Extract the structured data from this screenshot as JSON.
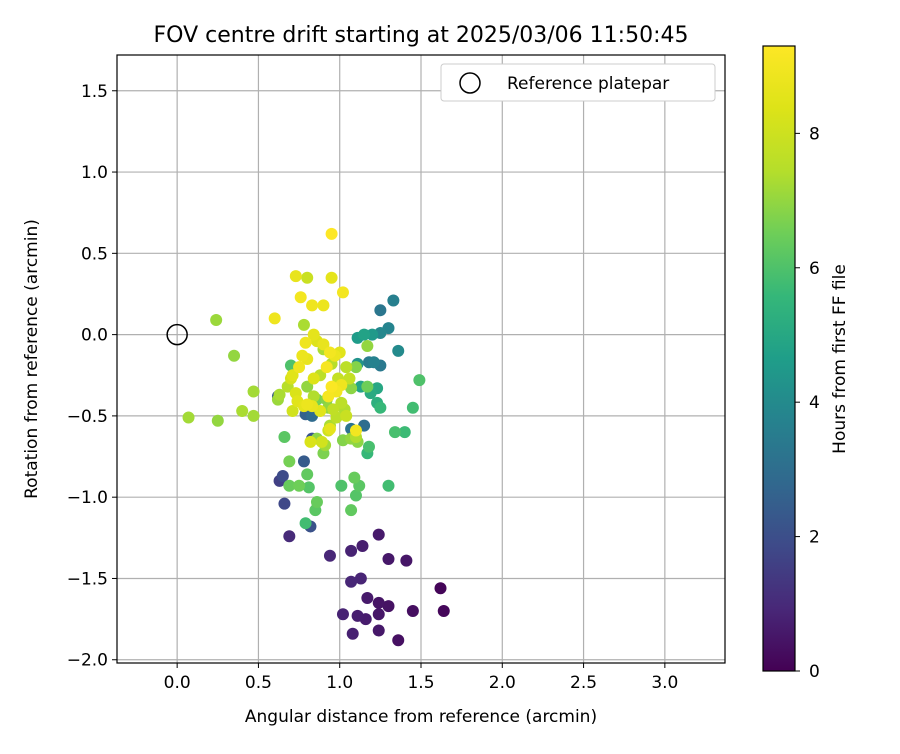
{
  "chart_data": {
    "type": "scatter",
    "title": "FOV centre drift starting at 2025/03/06 11:50:45",
    "xlabel": "Angular distance from reference (arcmin)",
    "ylabel": "Rotation from reference (arcmin)",
    "xlim": [
      -0.37,
      3.37
    ],
    "ylim": [
      -2.02,
      1.72
    ],
    "xticks": [
      0.0,
      0.5,
      1.0,
      1.5,
      2.0,
      2.5,
      3.0
    ],
    "xtick_labels": [
      "0.0",
      "0.5",
      "1.0",
      "1.5",
      "2.0",
      "2.5",
      "3.0"
    ],
    "yticks": [
      -2.0,
      -1.5,
      -1.0,
      -0.5,
      0.0,
      0.5,
      1.0,
      1.5
    ],
    "ytick_labels": [
      "−2.0",
      "−1.5",
      "−1.0",
      "−0.5",
      "0.0",
      "0.5",
      "1.0",
      "1.5"
    ],
    "grid": true,
    "legend": {
      "placement": "top-right",
      "entries": [
        "Reference platepar"
      ]
    },
    "reference_point": {
      "x": 0.0,
      "y": 0.0,
      "marker": "open-circle"
    },
    "colorbar": {
      "label": "Hours from first FF file",
      "colormap": "viridis",
      "range": [
        0,
        9.3
      ],
      "ticks": [
        0,
        2,
        4,
        6,
        8
      ],
      "tick_labels": [
        "0",
        "2",
        "4",
        "6",
        "8"
      ]
    },
    "points": [
      {
        "x": 1.62,
        "y": -1.56,
        "t": 0.1
      },
      {
        "x": 1.64,
        "y": -1.7,
        "t": 0.15
      },
      {
        "x": 1.45,
        "y": -1.7,
        "t": 0.3
      },
      {
        "x": 1.36,
        "y": -1.88,
        "t": 0.35
      },
      {
        "x": 1.3,
        "y": -1.67,
        "t": 0.4
      },
      {
        "x": 1.24,
        "y": -1.65,
        "t": 0.45
      },
      {
        "x": 1.24,
        "y": -1.72,
        "t": 0.5
      },
      {
        "x": 1.24,
        "y": -1.82,
        "t": 0.55
      },
      {
        "x": 1.17,
        "y": -1.62,
        "t": 0.6
      },
      {
        "x": 1.16,
        "y": -1.75,
        "t": 0.65
      },
      {
        "x": 1.11,
        "y": -1.73,
        "t": 0.7
      },
      {
        "x": 1.08,
        "y": -1.84,
        "t": 0.75
      },
      {
        "x": 1.02,
        "y": -1.72,
        "t": 0.8
      },
      {
        "x": 1.13,
        "y": -1.5,
        "t": 0.85
      },
      {
        "x": 1.07,
        "y": -1.52,
        "t": 0.9
      },
      {
        "x": 1.41,
        "y": -1.39,
        "t": 0.5
      },
      {
        "x": 1.3,
        "y": -1.38,
        "t": 0.55
      },
      {
        "x": 1.24,
        "y": -1.23,
        "t": 0.6
      },
      {
        "x": 1.14,
        "y": -1.3,
        "t": 0.7
      },
      {
        "x": 1.07,
        "y": -1.33,
        "t": 0.8
      },
      {
        "x": 0.94,
        "y": -1.36,
        "t": 0.9
      },
      {
        "x": 0.69,
        "y": -1.24,
        "t": 1.0
      },
      {
        "x": 0.82,
        "y": -1.18,
        "t": 2.1
      },
      {
        "x": 0.66,
        "y": -1.04,
        "t": 1.8
      },
      {
        "x": 0.63,
        "y": -0.9,
        "t": 1.6
      },
      {
        "x": 0.65,
        "y": -0.87,
        "t": 1.9
      },
      {
        "x": 0.78,
        "y": -0.78,
        "t": 2.4
      },
      {
        "x": 0.83,
        "y": -0.64,
        "t": 2.2
      },
      {
        "x": 0.79,
        "y": -0.49,
        "t": 2.6
      },
      {
        "x": 0.83,
        "y": -0.5,
        "t": 2.9
      },
      {
        "x": 0.62,
        "y": -0.38,
        "t": 2.3
      },
      {
        "x": 1.25,
        "y": 0.15,
        "t": 3.3
      },
      {
        "x": 1.33,
        "y": 0.21,
        "t": 3.6
      },
      {
        "x": 1.3,
        "y": 0.04,
        "t": 3.8
      },
      {
        "x": 1.25,
        "y": 0.01,
        "t": 3.9
      },
      {
        "x": 1.21,
        "y": -0.17,
        "t": 3.7
      },
      {
        "x": 1.25,
        "y": -0.19,
        "t": 3.4
      },
      {
        "x": 1.36,
        "y": -0.1,
        "t": 4.0
      },
      {
        "x": 1.07,
        "y": -0.58,
        "t": 3.2
      },
      {
        "x": 1.15,
        "y": -0.56,
        "t": 3.0
      },
      {
        "x": 1.18,
        "y": -0.17,
        "t": 3.5
      },
      {
        "x": 1.11,
        "y": -0.18,
        "t": 4.3
      },
      {
        "x": 1.2,
        "y": 0.0,
        "t": 4.5
      },
      {
        "x": 1.15,
        "y": 0.0,
        "t": 4.8
      },
      {
        "x": 1.11,
        "y": -0.02,
        "t": 4.6
      },
      {
        "x": 1.13,
        "y": -0.32,
        "t": 4.9
      },
      {
        "x": 1.19,
        "y": -0.36,
        "t": 5.1
      },
      {
        "x": 1.23,
        "y": -0.33,
        "t": 5.0
      },
      {
        "x": 1.23,
        "y": -0.42,
        "t": 5.3
      },
      {
        "x": 1.25,
        "y": -0.45,
        "t": 5.6
      },
      {
        "x": 1.45,
        "y": -0.45,
        "t": 5.8
      },
      {
        "x": 1.49,
        "y": -0.28,
        "t": 6.0
      },
      {
        "x": 1.4,
        "y": -0.6,
        "t": 5.7
      },
      {
        "x": 1.34,
        "y": -0.6,
        "t": 5.9
      },
      {
        "x": 1.18,
        "y": -0.69,
        "t": 5.9
      },
      {
        "x": 1.17,
        "y": -0.73,
        "t": 5.6
      },
      {
        "x": 1.3,
        "y": -0.93,
        "t": 5.8
      },
      {
        "x": 1.12,
        "y": -0.93,
        "t": 6.2
      },
      {
        "x": 1.09,
        "y": -0.88,
        "t": 6.4
      },
      {
        "x": 1.1,
        "y": -0.99,
        "t": 6.1
      },
      {
        "x": 1.07,
        "y": -1.08,
        "t": 6.3
      },
      {
        "x": 1.01,
        "y": -0.93,
        "t": 6.0
      },
      {
        "x": 0.85,
        "y": -1.08,
        "t": 6.2
      },
      {
        "x": 0.86,
        "y": -1.03,
        "t": 6.4
      },
      {
        "x": 0.81,
        "y": -0.94,
        "t": 6.1
      },
      {
        "x": 0.79,
        "y": -1.16,
        "t": 5.8
      },
      {
        "x": 0.8,
        "y": -0.86,
        "t": 6.3
      },
      {
        "x": 0.75,
        "y": -0.93,
        "t": 6.5
      },
      {
        "x": 0.69,
        "y": -0.93,
        "t": 6.4
      },
      {
        "x": 0.69,
        "y": -0.78,
        "t": 6.6
      },
      {
        "x": 0.66,
        "y": -0.63,
        "t": 6.2
      },
      {
        "x": 0.9,
        "y": -0.73,
        "t": 6.7
      },
      {
        "x": 0.86,
        "y": -0.64,
        "t": 6.9
      },
      {
        "x": 0.91,
        "y": -0.68,
        "t": 7.2
      },
      {
        "x": 1.02,
        "y": -0.65,
        "t": 6.8
      },
      {
        "x": 1.07,
        "y": -0.64,
        "t": 7.0
      },
      {
        "x": 1.1,
        "y": -0.63,
        "t": 7.4
      },
      {
        "x": 1.11,
        "y": -0.66,
        "t": 6.9
      },
      {
        "x": 0.94,
        "y": -0.56,
        "t": 7.3
      },
      {
        "x": 0.93,
        "y": -0.45,
        "t": 7.0
      },
      {
        "x": 1.17,
        "y": -0.32,
        "t": 6.5
      },
      {
        "x": 1.1,
        "y": -0.2,
        "t": 6.8
      },
      {
        "x": 1.17,
        "y": -0.07,
        "t": 7.0
      },
      {
        "x": 0.7,
        "y": -0.19,
        "t": 6.0
      },
      {
        "x": 0.63,
        "y": -0.37,
        "t": 7.3
      },
      {
        "x": 0.68,
        "y": -0.32,
        "t": 7.5
      },
      {
        "x": 0.62,
        "y": -0.4,
        "t": 7.1
      },
      {
        "x": 0.47,
        "y": -0.35,
        "t": 7.2
      },
      {
        "x": 0.4,
        "y": -0.47,
        "t": 7.3
      },
      {
        "x": 0.47,
        "y": -0.5,
        "t": 7.2
      },
      {
        "x": 0.35,
        "y": -0.13,
        "t": 7.0
      },
      {
        "x": 0.24,
        "y": 0.09,
        "t": 7.1
      },
      {
        "x": 0.07,
        "y": -0.51,
        "t": 7.2
      },
      {
        "x": 0.25,
        "y": -0.53,
        "t": 7.0
      },
      {
        "x": 0.78,
        "y": 0.06,
        "t": 7.3
      },
      {
        "x": 0.8,
        "y": -0.32,
        "t": 7.0
      },
      {
        "x": 0.84,
        "y": -0.38,
        "t": 7.4
      },
      {
        "x": 0.88,
        "y": -0.25,
        "t": 7.6
      },
      {
        "x": 0.9,
        "y": -0.09,
        "t": 7.3
      },
      {
        "x": 0.95,
        "y": -0.18,
        "t": 7.5
      },
      {
        "x": 0.99,
        "y": -0.27,
        "t": 7.8
      },
      {
        "x": 1.01,
        "y": -0.42,
        "t": 7.6
      },
      {
        "x": 0.96,
        "y": -0.46,
        "t": 7.7
      },
      {
        "x": 0.98,
        "y": -0.51,
        "t": 7.6
      },
      {
        "x": 1.03,
        "y": -0.46,
        "t": 7.4
      },
      {
        "x": 1.04,
        "y": -0.5,
        "t": 7.9
      },
      {
        "x": 0.93,
        "y": -0.59,
        "t": 8.0
      },
      {
        "x": 0.89,
        "y": -0.66,
        "t": 8.1
      },
      {
        "x": 0.82,
        "y": -0.66,
        "t": 8.3
      },
      {
        "x": 0.71,
        "y": -0.47,
        "t": 8.1
      },
      {
        "x": 0.74,
        "y": -0.41,
        "t": 8.5
      },
      {
        "x": 0.73,
        "y": -0.36,
        "t": 8.3
      },
      {
        "x": 0.78,
        "y": -0.44,
        "t": 8.6
      },
      {
        "x": 0.8,
        "y": -0.43,
        "t": 8.8
      },
      {
        "x": 0.84,
        "y": -0.27,
        "t": 8.4
      },
      {
        "x": 0.8,
        "y": -0.15,
        "t": 8.7
      },
      {
        "x": 0.75,
        "y": -0.2,
        "t": 8.9
      },
      {
        "x": 0.71,
        "y": -0.25,
        "t": 8.5
      },
      {
        "x": 0.7,
        "y": -0.27,
        "t": 8.2
      },
      {
        "x": 0.77,
        "y": -0.13,
        "t": 8.8
      },
      {
        "x": 0.79,
        "y": -0.05,
        "t": 8.9
      },
      {
        "x": 0.84,
        "y": 0.0,
        "t": 8.6
      },
      {
        "x": 0.86,
        "y": -0.04,
        "t": 8.4
      },
      {
        "x": 0.9,
        "y": -0.06,
        "t": 8.7
      },
      {
        "x": 0.94,
        "y": -0.11,
        "t": 9.0
      },
      {
        "x": 0.97,
        "y": -0.13,
        "t": 8.8
      },
      {
        "x": 0.92,
        "y": -0.2,
        "t": 9.1
      },
      {
        "x": 0.95,
        "y": -0.32,
        "t": 9.2
      },
      {
        "x": 0.98,
        "y": -0.35,
        "t": 9.0
      },
      {
        "x": 1.01,
        "y": -0.31,
        "t": 8.9
      },
      {
        "x": 0.93,
        "y": -0.38,
        "t": 9.1
      },
      {
        "x": 1.1,
        "y": -0.59,
        "t": 9.0
      },
      {
        "x": 0.94,
        "y": -0.58,
        "t": 8.6
      },
      {
        "x": 0.88,
        "y": -0.47,
        "t": 8.5
      },
      {
        "x": 0.83,
        "y": -0.44,
        "t": 8.7
      },
      {
        "x": 0.8,
        "y": 0.35,
        "t": 7.9
      },
      {
        "x": 0.76,
        "y": 0.23,
        "t": 9.0
      },
      {
        "x": 0.73,
        "y": 0.36,
        "t": 8.7
      },
      {
        "x": 0.83,
        "y": 0.18,
        "t": 8.9
      },
      {
        "x": 0.9,
        "y": 0.18,
        "t": 8.8
      },
      {
        "x": 0.95,
        "y": 0.35,
        "t": 8.6
      },
      {
        "x": 1.02,
        "y": 0.26,
        "t": 9.0
      },
      {
        "x": 0.95,
        "y": 0.62,
        "t": 9.3
      },
      {
        "x": 0.6,
        "y": 0.1,
        "t": 8.9
      },
      {
        "x": 1.0,
        "y": -0.11,
        "t": 8.5
      },
      {
        "x": 1.04,
        "y": -0.2,
        "t": 7.6
      },
      {
        "x": 1.06,
        "y": -0.27,
        "t": 7.8
      },
      {
        "x": 0.86,
        "y": -0.4,
        "t": 6.6
      },
      {
        "x": 0.92,
        "y": -0.4,
        "t": 6.8
      },
      {
        "x": 1.07,
        "y": -0.33,
        "t": 6.9
      }
    ]
  }
}
